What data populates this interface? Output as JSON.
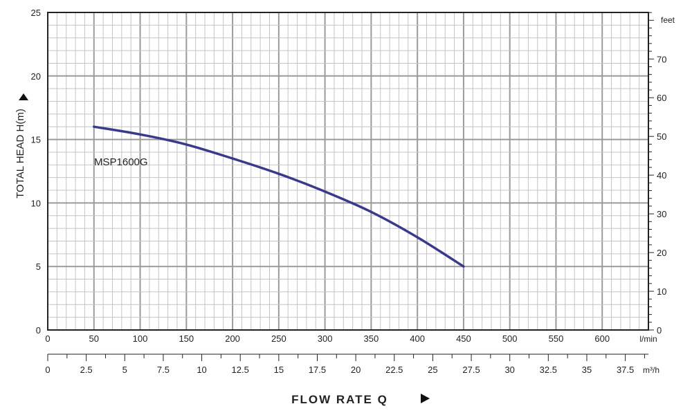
{
  "chart_data": {
    "type": "line",
    "title": "",
    "xlabel": "FLOW  RATE Q",
    "ylabel": "TOTAL HEAD H(m)",
    "x_unit": "l/min",
    "x_secondary_unit": "m³/h",
    "y_secondary_unit": "feet",
    "xlim": [
      0,
      650
    ],
    "ylim": [
      0,
      25
    ],
    "x_ticks": [
      "0",
      "50",
      "100",
      "150",
      "200",
      "250",
      "300",
      "350",
      "400",
      "450",
      "500",
      "550",
      "600"
    ],
    "y_ticks": [
      "0",
      "5",
      "10",
      "15",
      "20",
      "25"
    ],
    "x2_ticks": [
      "0",
      "2.5",
      "5",
      "7.5",
      "10",
      "12.5",
      "15",
      "17.5",
      "20",
      "22.5",
      "25",
      "27.5",
      "30",
      "32.5",
      "35",
      "37.5"
    ],
    "y2_ticks": [
      "0",
      "10",
      "20",
      "30",
      "40",
      "50",
      "60",
      "70"
    ],
    "grid": true,
    "series": [
      {
        "name": "MSP1600G",
        "color": "#3a3a8c",
        "x": [
          50,
          100,
          150,
          200,
          250,
          300,
          350,
          400,
          450
        ],
        "y": [
          16.0,
          15.4,
          14.6,
          13.5,
          12.3,
          10.9,
          9.3,
          7.3,
          5.0
        ]
      }
    ]
  }
}
